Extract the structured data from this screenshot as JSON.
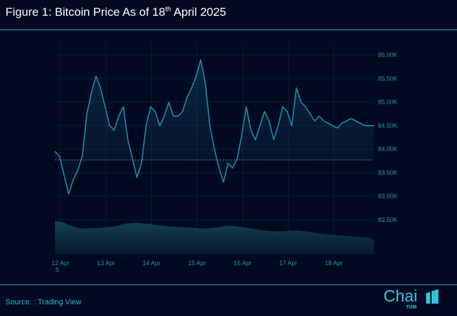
{
  "header": {
    "title_main": "Figure 1: Bitcoin Price As of 18",
    "title_sup": "th",
    "title_end": " April 2025"
  },
  "footer": {
    "source": "Source: : Trading View",
    "logo_text": "Chai",
    "logo_sub": "TUM"
  },
  "colors": {
    "line": "#1e8ea6",
    "accent": "#2a9fb3",
    "background": "#020a22"
  },
  "chart_data": {
    "type": "line",
    "title": "",
    "xlabel": "",
    "ylabel": "",
    "grid": true,
    "x_ticks": [
      "12 Apr",
      "13 Apr",
      "14 Apr",
      "15 Apr",
      "16 Apr",
      "17 Apr",
      "18 Apr"
    ],
    "x_tick_extra": "5",
    "y_ticks": [
      "86.00K",
      "85.50K",
      "85.00K",
      "84.50K",
      "84.00K",
      "83.50K",
      "83.00K",
      "82.50K"
    ],
    "ylim": [
      82500,
      86000
    ],
    "reference_line": 83770,
    "series": [
      {
        "x": [
          0,
          0.1,
          0.2,
          0.3,
          0.4,
          0.5,
          0.6,
          0.7,
          0.8,
          0.9,
          1.0,
          1.1,
          1.2,
          1.3,
          1.4,
          1.5,
          1.6,
          1.7,
          1.8,
          1.9,
          2.0,
          2.1,
          2.2,
          2.3,
          2.4,
          2.5,
          2.6,
          2.7,
          2.8,
          2.9,
          3.0,
          3.1,
          3.2,
          3.3,
          3.4,
          3.5,
          3.6,
          3.7,
          3.8,
          3.9,
          4.0,
          4.1,
          4.2,
          4.3,
          4.4,
          4.5,
          4.6,
          4.7,
          4.8,
          4.9,
          5.0,
          5.1,
          5.2,
          5.3,
          5.4,
          5.5,
          5.6,
          5.7,
          5.8,
          5.9,
          6.0,
          6.1,
          6.2,
          6.3,
          6.4,
          6.5,
          6.6,
          6.7,
          6.8,
          6.9,
          7.0
        ],
        "values": [
          83950,
          83850,
          83450,
          83050,
          83350,
          83550,
          83850,
          84750,
          85200,
          85550,
          85300,
          84900,
          84500,
          84400,
          84700,
          84900,
          84200,
          83800,
          83400,
          83700,
          84500,
          84900,
          84800,
          84500,
          84700,
          85000,
          84700,
          84700,
          84800,
          85100,
          85300,
          85550,
          85900,
          85400,
          84500,
          84000,
          83600,
          83300,
          83700,
          83600,
          83800,
          84300,
          84900,
          84400,
          84200,
          84500,
          84800,
          84600,
          84200,
          84500,
          84900,
          84800,
          84500,
          85300,
          85000,
          84900,
          84750,
          84600,
          84700,
          84600,
          84550,
          84500,
          84450,
          84550,
          84600,
          84650,
          84600,
          84550,
          84500,
          84500,
          84500
        ],
        "volume": [
          0.92,
          0.91,
          0.88,
          0.82,
          0.78,
          0.74,
          0.72,
          0.72,
          0.73,
          0.73,
          0.74,
          0.75,
          0.76,
          0.78,
          0.8,
          0.84,
          0.86,
          0.87,
          0.88,
          0.86,
          0.85,
          0.84,
          0.82,
          0.8,
          0.79,
          0.78,
          0.77,
          0.76,
          0.75,
          0.75,
          0.74,
          0.73,
          0.72,
          0.72,
          0.73,
          0.74,
          0.76,
          0.78,
          0.8,
          0.79,
          0.78,
          0.76,
          0.74,
          0.72,
          0.7,
          0.68,
          0.66,
          0.65,
          0.64,
          0.64,
          0.64,
          0.65,
          0.66,
          0.66,
          0.65,
          0.64,
          0.62,
          0.6,
          0.58,
          0.56,
          0.55,
          0.54,
          0.53,
          0.52,
          0.51,
          0.5,
          0.49,
          0.48,
          0.47,
          0.46,
          0.4
        ]
      }
    ]
  }
}
